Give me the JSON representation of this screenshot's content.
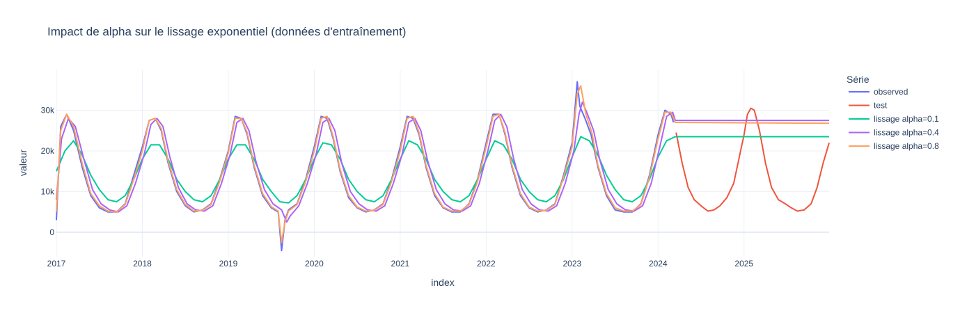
{
  "chart_data": {
    "type": "line",
    "title": "Impact de alpha sur le lissage exponentiel (données d'entraînement)",
    "xlabel": "index",
    "ylabel": "valeur",
    "x_range": [
      2017.0,
      2025.99
    ],
    "ylim": [
      -6000,
      40000
    ],
    "x_ticks": [
      {
        "value": 2017,
        "label": "2017"
      },
      {
        "value": 2018,
        "label": "2018"
      },
      {
        "value": 2019,
        "label": "2019"
      },
      {
        "value": 2020,
        "label": "2020"
      },
      {
        "value": 2021,
        "label": "2021"
      },
      {
        "value": 2022,
        "label": "2022"
      },
      {
        "value": 2023,
        "label": "2023"
      },
      {
        "value": 2024,
        "label": "2024"
      },
      {
        "value": 2025,
        "label": "2025"
      }
    ],
    "y_ticks": [
      {
        "value": 0,
        "label": "0"
      },
      {
        "value": 10000,
        "label": "10k"
      },
      {
        "value": 20000,
        "label": "20k"
      },
      {
        "value": 30000,
        "label": "30k"
      }
    ],
    "grid": true,
    "legend": {
      "title": "Série",
      "position": "right"
    },
    "series": [
      {
        "name": "observed",
        "color": "#636efa",
        "width": 2,
        "x": [
          2017.0,
          2017.05,
          2017.12,
          2017.2,
          2017.3,
          2017.4,
          2017.5,
          2017.6,
          2017.7,
          2017.8,
          2017.9,
          2018.0,
          2018.08,
          2018.15,
          2018.22,
          2018.3,
          2018.4,
          2018.5,
          2018.6,
          2018.7,
          2018.8,
          2018.9,
          2019.0,
          2019.08,
          2019.15,
          2019.22,
          2019.3,
          2019.4,
          2019.5,
          2019.58,
          2019.62,
          2019.66,
          2019.7,
          2019.8,
          2019.9,
          2020.0,
          2020.08,
          2020.15,
          2020.22,
          2020.3,
          2020.4,
          2020.5,
          2020.6,
          2020.7,
          2020.8,
          2020.9,
          2021.0,
          2021.08,
          2021.15,
          2021.22,
          2021.3,
          2021.4,
          2021.5,
          2021.6,
          2021.7,
          2021.8,
          2021.9,
          2022.0,
          2022.08,
          2022.15,
          2022.22,
          2022.3,
          2022.4,
          2022.5,
          2022.6,
          2022.7,
          2022.8,
          2022.9,
          2023.0,
          2023.06,
          2023.09,
          2023.15,
          2023.22,
          2023.3,
          2023.4,
          2023.5,
          2023.6,
          2023.7,
          2023.8,
          2023.9,
          2024.0,
          2024.08,
          2024.15,
          2024.18
        ],
        "y": [
          3000,
          26000,
          29000,
          25000,
          16000,
          9000,
          6000,
          5000,
          5000,
          7000,
          14000,
          21000,
          27500,
          28000,
          25000,
          17000,
          10000,
          6500,
          5000,
          5500,
          7000,
          13000,
          20000,
          28500,
          28000,
          24000,
          16000,
          9000,
          6000,
          5000,
          -4500,
          3000,
          5500,
          7000,
          13000,
          21000,
          28500,
          28000,
          23000,
          15000,
          8500,
          6000,
          5000,
          5500,
          7000,
          13000,
          21000,
          28500,
          28000,
          24000,
          16000,
          9000,
          6000,
          5000,
          5000,
          7000,
          13000,
          22000,
          29000,
          29000,
          24000,
          16000,
          9000,
          6000,
          5000,
          5500,
          7000,
          14000,
          22000,
          37000,
          31000,
          28000,
          24000,
          16000,
          9000,
          5500,
          5000,
          5000,
          7000,
          14000,
          24000,
          30000,
          29000,
          27000
        ]
      },
      {
        "name": "test",
        "color": "#ef553b",
        "width": 2,
        "x": [
          2024.21,
          2024.28,
          2024.35,
          2024.42,
          2024.5,
          2024.58,
          2024.65,
          2024.72,
          2024.8,
          2024.88,
          2024.95,
          2025.0,
          2025.04,
          2025.08,
          2025.12,
          2025.18,
          2025.25,
          2025.32,
          2025.4,
          2025.48,
          2025.55,
          2025.62,
          2025.7,
          2025.78,
          2025.85,
          2025.92,
          2025.99
        ],
        "y": [
          24500,
          17000,
          11000,
          8000,
          6500,
          5200,
          5500,
          6500,
          8500,
          12000,
          19000,
          24000,
          29000,
          30500,
          30000,
          25000,
          17000,
          11000,
          8000,
          7000,
          6000,
          5200,
          5500,
          7000,
          11000,
          17000,
          22000
        ]
      },
      {
        "name": "lissage alpha=0.1",
        "color": "#00cc96",
        "width": 2,
        "x": [
          2017.0,
          2017.1,
          2017.2,
          2017.3,
          2017.4,
          2017.5,
          2017.6,
          2017.7,
          2017.8,
          2017.9,
          2018.0,
          2018.1,
          2018.2,
          2018.3,
          2018.4,
          2018.5,
          2018.6,
          2018.7,
          2018.8,
          2018.9,
          2019.0,
          2019.1,
          2019.2,
          2019.3,
          2019.4,
          2019.5,
          2019.6,
          2019.7,
          2019.8,
          2019.9,
          2020.0,
          2020.1,
          2020.2,
          2020.3,
          2020.4,
          2020.5,
          2020.6,
          2020.7,
          2020.8,
          2020.9,
          2021.0,
          2021.1,
          2021.2,
          2021.3,
          2021.4,
          2021.5,
          2021.6,
          2021.7,
          2021.8,
          2021.9,
          2022.0,
          2022.1,
          2022.2,
          2022.3,
          2022.4,
          2022.5,
          2022.6,
          2022.7,
          2022.8,
          2022.9,
          2023.0,
          2023.1,
          2023.2,
          2023.3,
          2023.4,
          2023.5,
          2023.6,
          2023.7,
          2023.8,
          2023.9,
          2024.0,
          2024.1,
          2024.2,
          2025.99
        ],
        "y": [
          15000,
          20000,
          22500,
          19000,
          14000,
          10500,
          8000,
          7500,
          9000,
          13000,
          18000,
          21500,
          21500,
          18000,
          13000,
          10000,
          8000,
          7500,
          9000,
          13000,
          18000,
          21500,
          21500,
          18000,
          13000,
          10000,
          7500,
          7200,
          9000,
          13000,
          18000,
          22000,
          21500,
          18000,
          13000,
          10000,
          8000,
          7500,
          9000,
          13000,
          18000,
          22500,
          21500,
          18000,
          13000,
          10000,
          8000,
          7500,
          9000,
          13000,
          18000,
          22500,
          21500,
          18000,
          13000,
          10000,
          8000,
          7500,
          9000,
          13000,
          18500,
          23500,
          22500,
          19000,
          14000,
          10500,
          8000,
          7500,
          9000,
          13000,
          18500,
          22500,
          23500,
          23500
        ]
      },
      {
        "name": "lissage alpha=0.4",
        "color": "#ab63fa",
        "width": 2,
        "x": [
          2017.0,
          2017.06,
          2017.14,
          2017.22,
          2017.32,
          2017.42,
          2017.52,
          2017.62,
          2017.72,
          2017.82,
          2017.92,
          2018.02,
          2018.1,
          2018.17,
          2018.24,
          2018.32,
          2018.42,
          2018.52,
          2018.62,
          2018.72,
          2018.82,
          2018.92,
          2019.02,
          2019.1,
          2019.17,
          2019.24,
          2019.32,
          2019.42,
          2019.52,
          2019.62,
          2019.68,
          2019.72,
          2019.82,
          2019.92,
          2020.02,
          2020.1,
          2020.17,
          2020.24,
          2020.32,
          2020.42,
          2020.52,
          2020.62,
          2020.72,
          2020.82,
          2020.92,
          2021.02,
          2021.1,
          2021.17,
          2021.24,
          2021.32,
          2021.42,
          2021.52,
          2021.62,
          2021.72,
          2021.82,
          2021.92,
          2022.02,
          2022.1,
          2022.17,
          2022.24,
          2022.32,
          2022.42,
          2022.52,
          2022.62,
          2022.72,
          2022.82,
          2022.92,
          2023.02,
          2023.08,
          2023.12,
          2023.18,
          2023.25,
          2023.32,
          2023.42,
          2023.52,
          2023.62,
          2023.72,
          2023.82,
          2023.92,
          2024.02,
          2024.1,
          2024.17,
          2024.2,
          2025.99
        ],
        "y": [
          8000,
          23000,
          28000,
          26000,
          18000,
          10500,
          7000,
          5500,
          5000,
          6500,
          12000,
          19000,
          26500,
          28000,
          26000,
          18500,
          11000,
          7000,
          5500,
          5200,
          6500,
          12000,
          19000,
          27000,
          28000,
          25000,
          17500,
          10500,
          7000,
          5500,
          2500,
          4000,
          6500,
          12000,
          19000,
          27000,
          28000,
          25000,
          17000,
          10000,
          7000,
          5500,
          5200,
          6500,
          12000,
          19000,
          27000,
          28000,
          25000,
          17500,
          10500,
          7000,
          5500,
          5200,
          6500,
          12000,
          20000,
          27500,
          29000,
          26000,
          18000,
          10500,
          7000,
          5500,
          5200,
          6500,
          12000,
          20000,
          29000,
          32000,
          29000,
          25000,
          18000,
          10500,
          7000,
          5500,
          5200,
          6500,
          12000,
          21000,
          28500,
          29500,
          27500,
          27500
        ]
      },
      {
        "name": "lissage alpha=0.8",
        "color": "#ffa15a",
        "width": 2,
        "x": [
          2017.0,
          2017.05,
          2017.12,
          2017.2,
          2017.3,
          2017.4,
          2017.5,
          2017.6,
          2017.7,
          2017.8,
          2017.9,
          2018.0,
          2018.08,
          2018.15,
          2018.22,
          2018.3,
          2018.4,
          2018.5,
          2018.6,
          2018.7,
          2018.8,
          2018.9,
          2019.0,
          2019.08,
          2019.15,
          2019.22,
          2019.3,
          2019.4,
          2019.5,
          2019.58,
          2019.62,
          2019.66,
          2019.7,
          2019.8,
          2019.9,
          2020.0,
          2020.08,
          2020.15,
          2020.22,
          2020.3,
          2020.4,
          2020.5,
          2020.6,
          2020.7,
          2020.8,
          2020.9,
          2021.0,
          2021.08,
          2021.15,
          2021.22,
          2021.3,
          2021.4,
          2021.5,
          2021.6,
          2021.7,
          2021.8,
          2021.9,
          2022.0,
          2022.08,
          2022.15,
          2022.22,
          2022.3,
          2022.4,
          2022.5,
          2022.6,
          2022.7,
          2022.8,
          2022.9,
          2023.0,
          2023.06,
          2023.1,
          2023.16,
          2023.23,
          2023.3,
          2023.4,
          2023.5,
          2023.6,
          2023.7,
          2023.8,
          2023.9,
          2024.0,
          2024.08,
          2024.15,
          2024.2,
          2025.99
        ],
        "y": [
          5000,
          25000,
          29000,
          26000,
          17000,
          9500,
          6500,
          5200,
          5000,
          6800,
          13000,
          20000,
          27500,
          28000,
          25500,
          17500,
          10500,
          6800,
          5200,
          5400,
          6800,
          12500,
          19500,
          28000,
          28000,
          24500,
          16500,
          9500,
          6300,
          5200,
          -2500,
          2500,
          5200,
          6800,
          12500,
          20000,
          28000,
          28500,
          23500,
          15500,
          9000,
          6200,
          5200,
          5400,
          6800,
          12500,
          20000,
          28000,
          28500,
          24500,
          16500,
          9500,
          6200,
          5200,
          5200,
          6800,
          12500,
          21000,
          28500,
          29000,
          24500,
          16500,
          9500,
          6200,
          5200,
          5400,
          6800,
          13500,
          21000,
          34000,
          36000,
          29000,
          24500,
          16500,
          9500,
          6000,
          5200,
          5200,
          6800,
          13500,
          23000,
          29500,
          29500,
          27000,
          26800
        ]
      }
    ]
  }
}
